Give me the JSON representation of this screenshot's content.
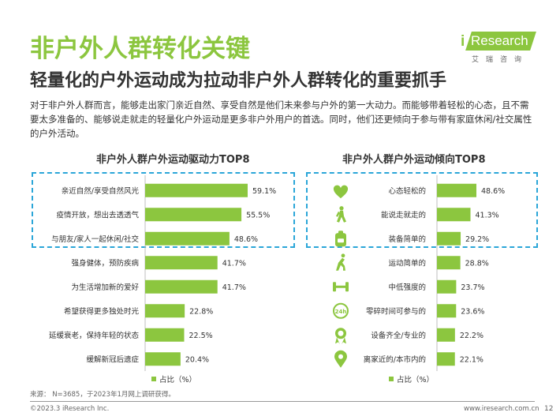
{
  "header": {
    "title": "非户外人群转化关键",
    "subtitle": "轻量化的户外运动成为拉动非户外人群转化的重要抓手",
    "logo_i": "i",
    "logo_text": "Research",
    "logo_sub": "艾瑞咨询"
  },
  "description": "对于非户外人群而言，能够走出家门亲近自然、享受自然是他们未来参与户外的第一大动力。而能够带着轻松的心态，且不需要太多准备的、能够说走就走的轻量化户外运动是更多非户外用户的首选。同时，他们还更倾向于参与带有家庭休闲/社交属性的户外活动。",
  "chart_data": [
    {
      "type": "bar",
      "orientation": "horizontal",
      "title": "非户外人群户外运动驱动力TOP8",
      "categories": [
        "亲近自然/享受自然风光",
        "疫情开放，想出去透透气",
        "与朋友/家人一起休闲/社交",
        "强身健体，预防疾病",
        "为生活增加新的爱好",
        "希望获得更多独处时光",
        "延缓衰老，保持年轻的状态",
        "缓解新冠后遗症"
      ],
      "values": [
        59.1,
        55.5,
        48.6,
        41.7,
        41.7,
        22.8,
        22.5,
        20.4
      ],
      "value_labels": [
        "59.1%",
        "55.5%",
        "48.6%",
        "41.7%",
        "41.7%",
        "22.8%",
        "22.5%",
        "20.4%"
      ],
      "legend": "占比（%）",
      "legend_position": "bottom",
      "highlighted_top": 3,
      "color": "#8CC63F"
    },
    {
      "type": "bar",
      "orientation": "horizontal",
      "title": "非户外人群户外运动倾向TOP8",
      "categories": [
        "心态轻松的",
        "能说走就走的",
        "装备简单的",
        "运动简单的",
        "中低强度的",
        "零碎时间可参与的",
        "设备齐全/专业的",
        "离家近的/本市内的"
      ],
      "values": [
        48.6,
        41.3,
        29.2,
        28.8,
        23.7,
        23.6,
        22.2,
        22.1
      ],
      "value_labels": [
        "48.6%",
        "41.3%",
        "29.2%",
        "28.8%",
        "23.7%",
        "23.6%",
        "22.2%",
        "22.1%"
      ],
      "icons": [
        "heart-icon",
        "walking-person-icon",
        "backpack-icon",
        "runner-icon",
        "dumbbell-icon",
        "24h-clock-icon",
        "medal-icon",
        "location-pin-icon"
      ],
      "legend": "占比（%）",
      "legend_position": "bottom",
      "highlighted_top": 3,
      "color": "#8CC63F"
    }
  ],
  "footer": {
    "source": "来源：  N=3685，于2023年1月网上调研获得。",
    "copyright": "©2023.3 iResearch Inc.",
    "website": "www.iresearch.com.cn",
    "page": "12"
  }
}
